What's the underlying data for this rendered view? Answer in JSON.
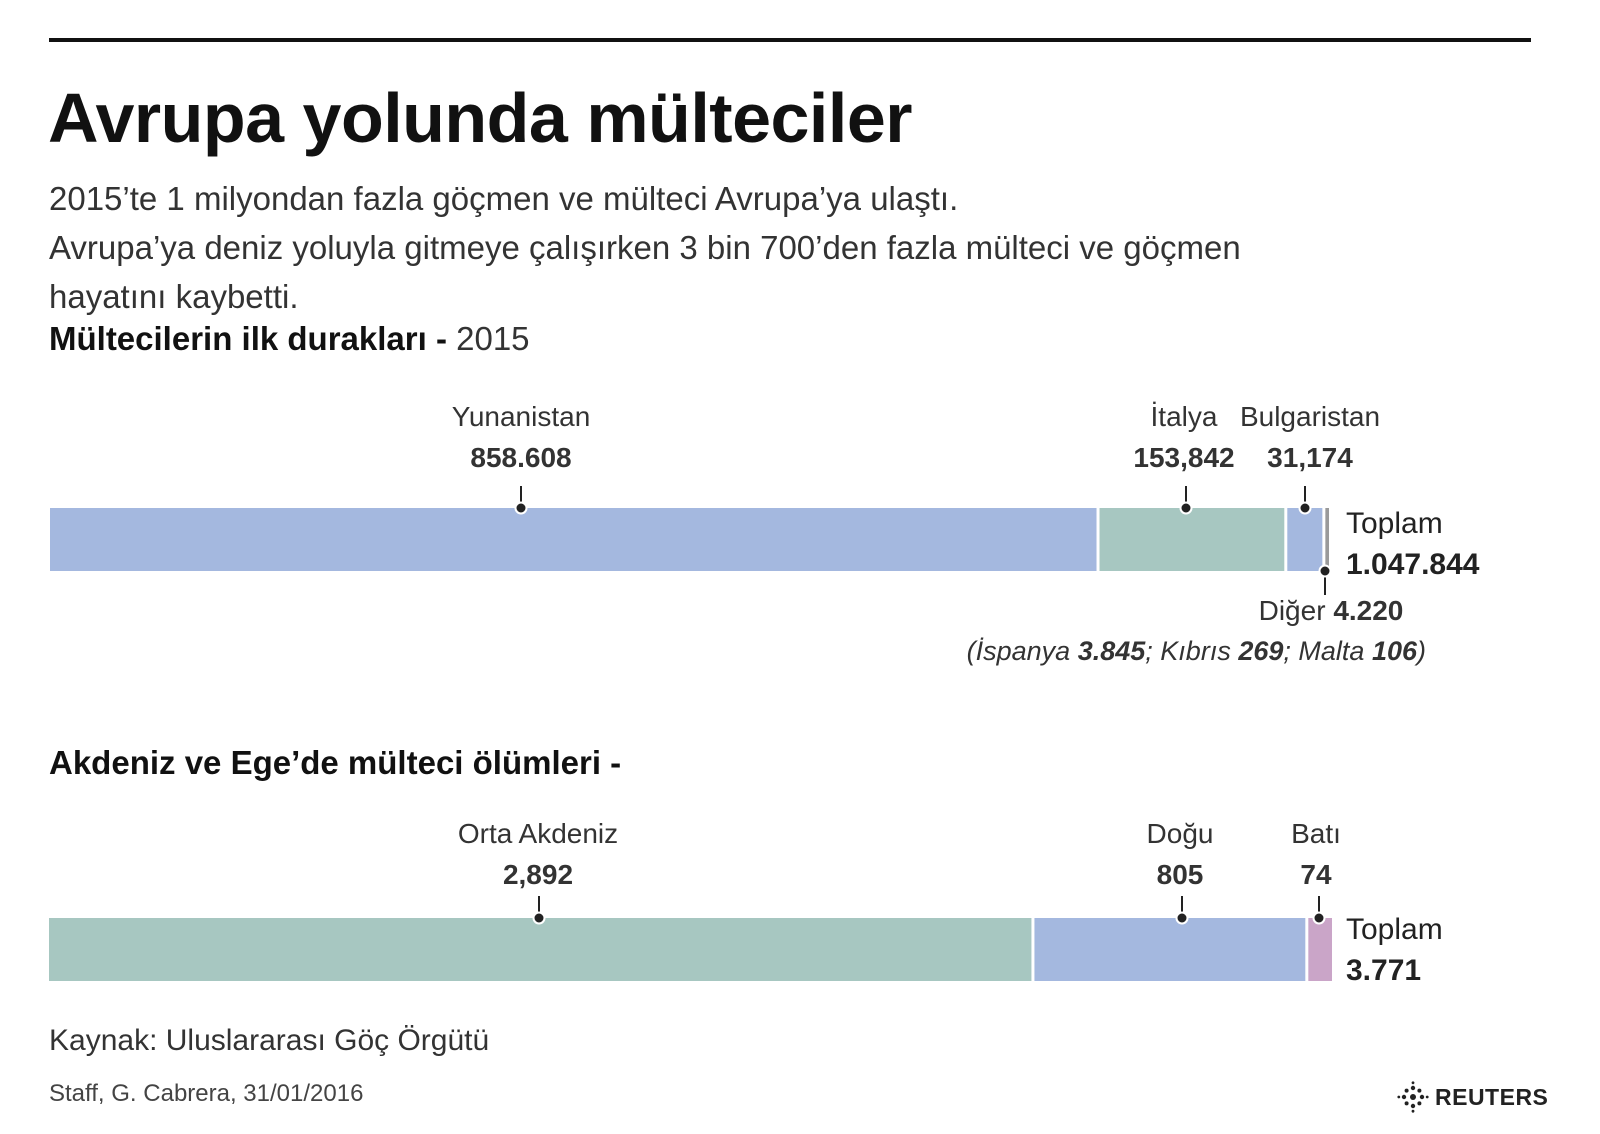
{
  "header": {
    "title": "Avrupa yolunda mülteciler",
    "intro_lines": [
      "2015’te 1 milyondan fazla göçmen ve mülteci Avrupa’ya ulaştı.",
      "Avrupa’ya deniz yoluyla gitmeye çalışırken 3 bin 700’den fazla mülteci ve göçmen",
      "hayatını kaybetti."
    ]
  },
  "section1": {
    "title": "Mültecilerin ilk durakları -",
    "year": "2015"
  },
  "section2": {
    "title": "Akdeniz ve Ege’de mülteci ölümleri -"
  },
  "colors": {
    "blue": "#a4b8df",
    "green": "#a7c7c1",
    "gray": "#9a9a9a",
    "pink": "#caa5c8",
    "text": "#222222"
  },
  "chart_data": [
    {
      "type": "bar",
      "orientation": "horizontal-stacked",
      "title": "Mültecilerin ilk durakları - 2015",
      "segments": [
        {
          "label": "Yunanistan",
          "value": 858608,
          "value_label": "858.608",
          "color": "#a4b8df"
        },
        {
          "label": "İtalya",
          "value": 153842,
          "value_label": "153,842",
          "color": "#a7c7c1"
        },
        {
          "label": "Bulgaristan",
          "value": 31174,
          "value_label": "31,174",
          "color": "#a4b8df"
        },
        {
          "label": "Diğer",
          "value": 4220,
          "value_label": "4.220",
          "color": "#9a9a9a"
        }
      ],
      "total_label": "Toplam",
      "total_value": "1.047.844",
      "note": {
        "open": "(",
        "parts": [
          {
            "name": "İspanya",
            "value": "3.845",
            "sep": ";"
          },
          {
            "name": "Kıbrıs",
            "value": "269",
            "sep": ";"
          },
          {
            "name": "Malta",
            "value": "106",
            "sep": ")"
          }
        ]
      }
    },
    {
      "type": "bar",
      "orientation": "horizontal-stacked",
      "title": "Akdeniz ve Ege’de mülteci ölümleri -",
      "segments": [
        {
          "label": "Orta Akdeniz",
          "value": 2892,
          "value_label": "2,892",
          "color": "#a7c7c1"
        },
        {
          "label": "Doğu",
          "value": 805,
          "value_label": "805",
          "color": "#a4b8df"
        },
        {
          "label": "Batı",
          "value": 74,
          "value_label": "74",
          "color": "#caa5c8"
        }
      ],
      "total_label": "Toplam",
      "total_value": "3.771"
    }
  ],
  "footer": {
    "source": "Kaynak: Uluslararası  Göç Örgütü",
    "credit": "Staff, G. Cabrera, 31/01/2016",
    "logo_text": "REUTERS"
  }
}
